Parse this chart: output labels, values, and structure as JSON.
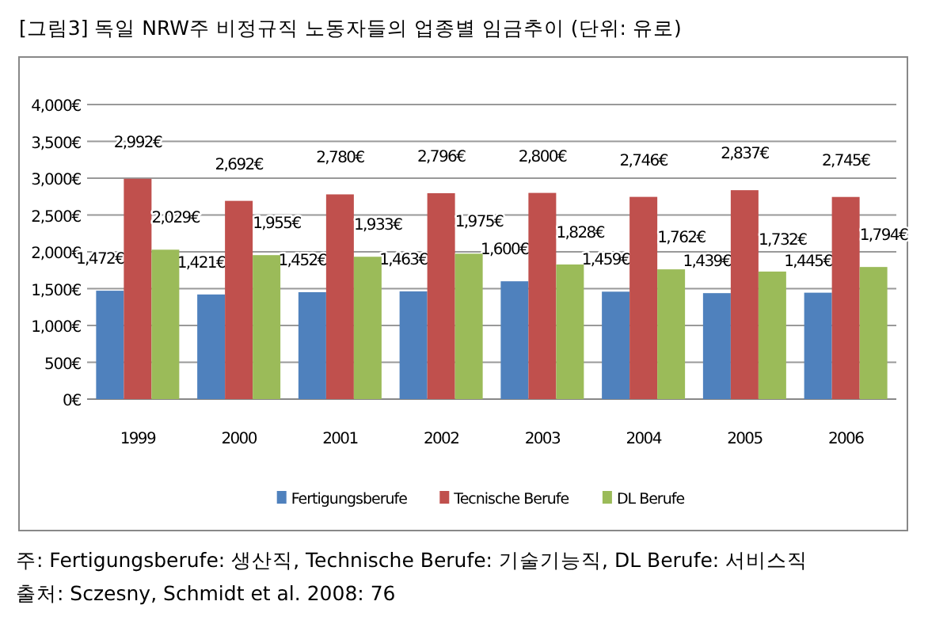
{
  "chart_data": {
    "type": "bar",
    "title": "[그림3] 독일 NRW주 비정규직 노동자들의 업종별 임금추이 (단위: 유로)",
    "categories": [
      "1999",
      "2000",
      "2001",
      "2002",
      "2003",
      "2004",
      "2005",
      "2006"
    ],
    "series": [
      {
        "name": "Fertigungsberufe",
        "color": "#4f81bd",
        "values": [
          1472,
          1421,
          1452,
          1463,
          1600,
          1459,
          1439,
          1445
        ],
        "value_labels": [
          "1,472€",
          "1,421€",
          "1,452€",
          "1,463€",
          "1,600€",
          "1,459€",
          "1,439€",
          "1,445€"
        ]
      },
      {
        "name": "Tecnische Berufe",
        "color": "#c0504d",
        "values": [
          2992,
          2692,
          2780,
          2796,
          2800,
          2746,
          2837,
          2745
        ],
        "value_labels": [
          "2,992€",
          "2,692€",
          "2,780€",
          "2,796€",
          "2,800€",
          "2,746€",
          "2,837€",
          "2,745€"
        ]
      },
      {
        "name": "DL Berufe",
        "color": "#9bbb59",
        "values": [
          2029,
          1955,
          1933,
          1975,
          1828,
          1762,
          1732,
          1794
        ],
        "value_labels": [
          "2,029€",
          "1,955€",
          "1,933€",
          "1,975€",
          "1,828€",
          "1,762€",
          "1,732€",
          "1,794€"
        ]
      }
    ],
    "ylim": [
      0,
      4000
    ],
    "yticks": [
      {
        "value": 0,
        "label": "0€"
      },
      {
        "value": 500,
        "label": "500€"
      },
      {
        "value": 1000,
        "label": "1,000€"
      },
      {
        "value": 1500,
        "label": "1,500€"
      },
      {
        "value": 2000,
        "label": "2,000€"
      },
      {
        "value": 2500,
        "label": "2,500€"
      },
      {
        "value": 3000,
        "label": "3,000€"
      },
      {
        "value": 3500,
        "label": "3,500€"
      },
      {
        "value": 4000,
        "label": "4,000€"
      }
    ],
    "grid": "y",
    "legend": "bottom",
    "annotations": [
      "주: Fertigungsberufe: 생산직, Technische Berufe: 기술기능직, DL Berufe: 서비스직",
      "출처: Sczesny, Schmidt et al. 2008: 76"
    ]
  }
}
